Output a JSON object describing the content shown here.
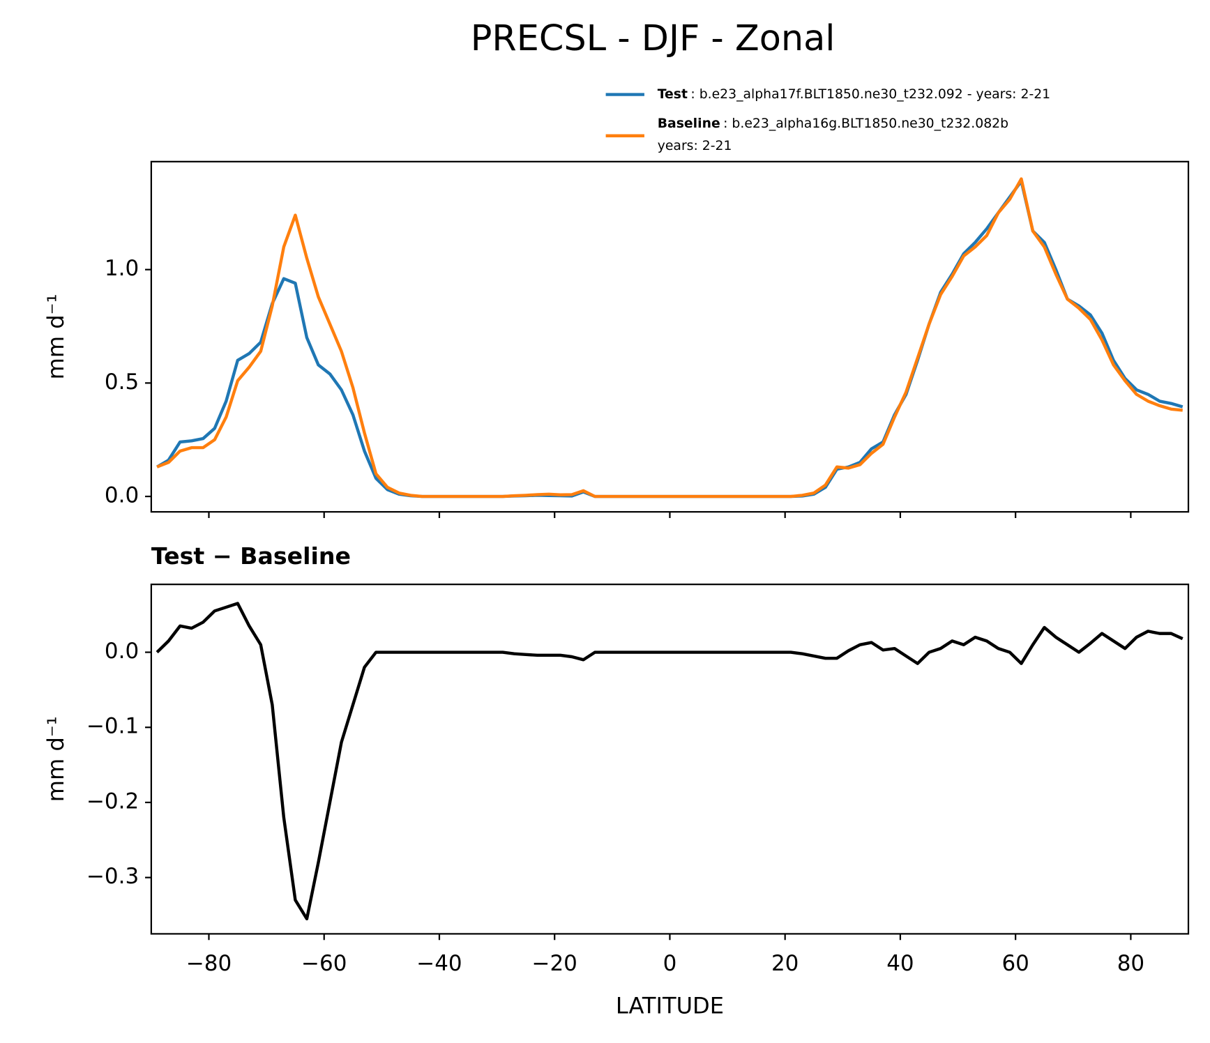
{
  "title": "PRECSL - DJF - Zonal",
  "chart_data": [
    {
      "type": "line",
      "ylabel": "mm d⁻¹",
      "show_xtick_labels": false,
      "x": [
        -89,
        -87,
        -85,
        -83,
        -81,
        -79,
        -77,
        -75,
        -73,
        -71,
        -69,
        -67,
        -65,
        -63,
        -61,
        -59,
        -57,
        -55,
        -53,
        -51,
        -49,
        -47,
        -45,
        -43,
        -41,
        -39,
        -37,
        -35,
        -33,
        -31,
        -29,
        -27,
        -25,
        -23,
        -21,
        -19,
        -17,
        -15,
        -13,
        -11,
        -9,
        -7,
        -5,
        -3,
        -1,
        1,
        3,
        5,
        7,
        9,
        11,
        13,
        15,
        17,
        19,
        21,
        23,
        25,
        27,
        29,
        31,
        33,
        35,
        37,
        39,
        41,
        43,
        45,
        47,
        49,
        51,
        53,
        55,
        57,
        59,
        61,
        63,
        65,
        67,
        69,
        71,
        73,
        75,
        77,
        79,
        81,
        83,
        85,
        87,
        89
      ],
      "series": [
        {
          "name": "Test",
          "label": [
            ": b.e23_alpha17f.BLT1850.ne30_t232.092 - years: 2-21"
          ],
          "color": "#1f77b4",
          "values": [
            0.13,
            0.16,
            0.24,
            0.245,
            0.255,
            0.3,
            0.42,
            0.6,
            0.63,
            0.68,
            0.85,
            0.96,
            0.94,
            0.7,
            0.58,
            0.54,
            0.47,
            0.36,
            0.2,
            0.08,
            0.03,
            0.01,
            0.003,
            0,
            0,
            0,
            0,
            0,
            0,
            0,
            0,
            0.002,
            0.003,
            0.005,
            0.004,
            0.003,
            0.002,
            0.02,
            0,
            0,
            0,
            0,
            0,
            0,
            0,
            0,
            0,
            0,
            0,
            0,
            0,
            0,
            0,
            0,
            0,
            0,
            0.002,
            0.01,
            0.04,
            0.12,
            0.13,
            0.15,
            0.21,
            0.24,
            0.36,
            0.45,
            0.6,
            0.76,
            0.9,
            0.98,
            1.07,
            1.12,
            1.18,
            1.25,
            1.32,
            1.39,
            1.17,
            1.12,
            1.0,
            0.87,
            0.84,
            0.8,
            0.72,
            0.6,
            0.52,
            0.47,
            0.45,
            0.42,
            0.41,
            0.395
          ]
        },
        {
          "name": "Baseline",
          "label": [
            ": b.e23_alpha16g.BLT1850.ne30_t232.082b",
            "years: 2-21"
          ],
          "color": "#ff7f0e",
          "values": [
            0.13,
            0.15,
            0.2,
            0.215,
            0.215,
            0.25,
            0.35,
            0.51,
            0.57,
            0.64,
            0.84,
            1.1,
            1.24,
            1.05,
            0.88,
            0.76,
            0.64,
            0.48,
            0.28,
            0.1,
            0.04,
            0.015,
            0.005,
            0,
            0,
            0,
            0,
            0,
            0,
            0,
            0,
            0.003,
            0.005,
            0.008,
            0.01,
            0.007,
            0.008,
            0.025,
            0,
            0,
            0,
            0,
            0,
            0,
            0,
            0,
            0,
            0,
            0,
            0,
            0,
            0,
            0,
            0,
            0,
            0,
            0.005,
            0.015,
            0.05,
            0.13,
            0.125,
            0.14,
            0.19,
            0.23,
            0.35,
            0.46,
            0.61,
            0.76,
            0.89,
            0.97,
            1.06,
            1.1,
            1.15,
            1.25,
            1.31,
            1.4,
            1.17,
            1.1,
            0.98,
            0.87,
            0.83,
            0.78,
            0.69,
            0.58,
            0.51,
            0.45,
            0.42,
            0.4,
            0.385,
            0.38
          ]
        }
      ],
      "xlim": [
        -90,
        90
      ],
      "xticks": [
        -80,
        -60,
        -40,
        -20,
        0,
        20,
        40,
        60,
        80
      ],
      "ylim": [
        -0.068,
        1.476
      ],
      "yticks": [
        {
          "value": 0,
          "label": "0.0"
        },
        {
          "value": 0.5,
          "label": "0.5"
        },
        {
          "value": 1,
          "label": "1.0"
        }
      ]
    },
    {
      "type": "line",
      "subtitle": "Test − Baseline",
      "ylabel": "mm d⁻¹",
      "xlabel": "LATITUDE",
      "show_xtick_labels": true,
      "x": [
        -89,
        -87,
        -85,
        -83,
        -81,
        -79,
        -77,
        -75,
        -73,
        -71,
        -69,
        -67,
        -65,
        -63,
        -61,
        -59,
        -57,
        -55,
        -53,
        -51,
        -49,
        -47,
        -45,
        -43,
        -41,
        -39,
        -37,
        -35,
        -33,
        -31,
        -29,
        -27,
        -25,
        -23,
        -21,
        -19,
        -17,
        -15,
        -13,
        -11,
        -9,
        -7,
        -5,
        -3,
        -1,
        1,
        3,
        5,
        7,
        9,
        11,
        13,
        15,
        17,
        19,
        21,
        23,
        25,
        27,
        29,
        31,
        33,
        35,
        37,
        39,
        41,
        43,
        45,
        47,
        49,
        51,
        53,
        55,
        57,
        59,
        61,
        63,
        65,
        67,
        69,
        71,
        73,
        75,
        77,
        79,
        81,
        83,
        85,
        87,
        89
      ],
      "series": [
        {
          "color": "#000000",
          "values": [
            0.0,
            0.015,
            0.035,
            0.032,
            0.04,
            0.055,
            0.06,
            0.065,
            0.035,
            0.01,
            -0.07,
            -0.22,
            -0.33,
            -0.355,
            -0.28,
            -0.2,
            -0.12,
            -0.07,
            -0.02,
            0,
            0,
            0,
            0,
            0,
            0,
            0,
            0,
            0,
            0,
            0,
            0,
            -0.002,
            -0.003,
            -0.004,
            -0.004,
            -0.004,
            -0.006,
            -0.01,
            0,
            0,
            0,
            0,
            0,
            0,
            0,
            0,
            0,
            0,
            0,
            0,
            0,
            0,
            0,
            0,
            0,
            0,
            -0.002,
            -0.005,
            -0.008,
            -0.008,
            0.002,
            0.01,
            0.013,
            0.003,
            0.005,
            -0.005,
            -0.015,
            0.0,
            0.005,
            0.015,
            0.01,
            0.02,
            0.015,
            0.005,
            0.0,
            -0.015,
            0.01,
            0.033,
            0.02,
            0.01,
            0.0,
            0.012,
            0.025,
            0.015,
            0.005,
            0.02,
            0.028,
            0.025,
            0.025,
            0.018
          ]
        }
      ],
      "xlim": [
        -90,
        90
      ],
      "xticks": [
        {
          "value": -80,
          "label": "−80"
        },
        {
          "value": -60,
          "label": "−60"
        },
        {
          "value": -40,
          "label": "−40"
        },
        {
          "value": -20,
          "label": "−20"
        },
        0,
        20,
        40,
        60,
        80
      ],
      "ylim": [
        -0.375,
        0.0904
      ],
      "yticks": [
        {
          "value": 0,
          "label": "0.0"
        },
        {
          "value": -0.1,
          "label": "−0.1"
        },
        {
          "value": -0.2,
          "label": "−0.2"
        },
        {
          "value": -0.3,
          "label": "−0.3"
        }
      ]
    }
  ]
}
